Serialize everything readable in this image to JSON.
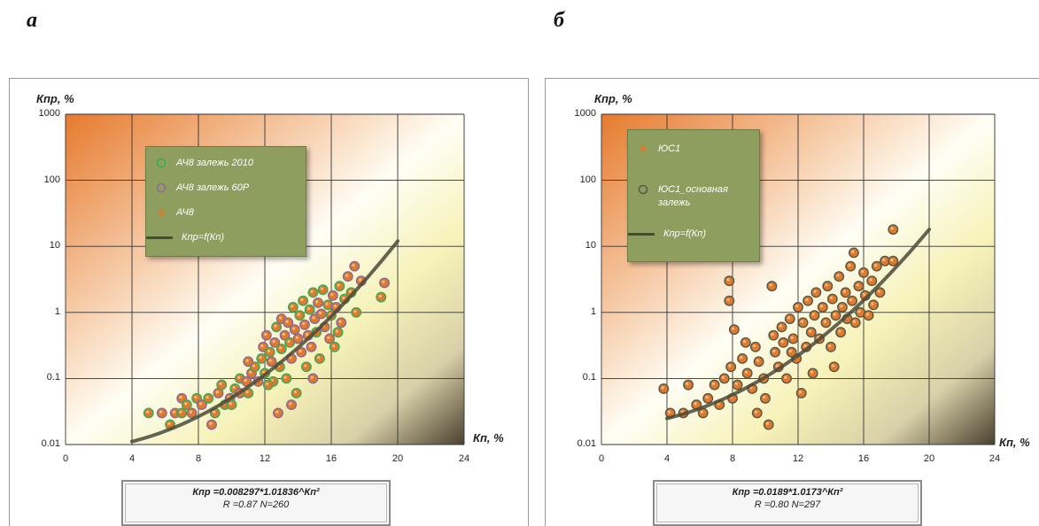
{
  "panels": [
    {
      "letter": "а",
      "ylabel": "Кпр, %",
      "xlabel": "Кп, %",
      "equation": "Кпр =0.008297*1.01836^Кп²",
      "stats": "R =0.87 N=260",
      "legend": [
        {
          "label": "АЧ8 залежь 2010",
          "marker": "ring",
          "color": "#3aaa5a"
        },
        {
          "label": "АЧ8 залежь 60Р",
          "marker": "ring",
          "color": "#8a6a9a"
        },
        {
          "label": "АЧ8",
          "marker": "dot",
          "color": "#e07a2a"
        },
        {
          "label": "Кпр=f(Кп)",
          "marker": "line",
          "color": "#4a4a3a"
        }
      ]
    },
    {
      "letter": "б",
      "ylabel": "Кпр, %",
      "xlabel": "Кп, %",
      "equation": "Кпр =0.0189*1.0173^Кп²",
      "stats": "R =0.80 N=297",
      "legend": [
        {
          "label": "ЮС1",
          "marker": "dot",
          "color": "#e07a2a"
        },
        {
          "label": "ЮС1_основная залежь",
          "marker": "ring",
          "color": "#5a5a4a"
        },
        {
          "label": "Кпр=f(Кп)",
          "marker": "line",
          "color": "#4a4a3a"
        }
      ]
    }
  ],
  "chart_data": [
    {
      "type": "scatter",
      "xlim": [
        0,
        24
      ],
      "ylim": [
        0.01,
        1000
      ],
      "yscale": "log",
      "xticks": [
        "0",
        "4",
        "8",
        "12",
        "16",
        "20",
        "24"
      ],
      "yticks": [
        "0.01",
        "0.1",
        "1",
        "10",
        "100",
        "1000"
      ],
      "grid": true,
      "legend_position": "top-center",
      "fit": {
        "a": 0.008297,
        "b": 1.01836,
        "x_range": [
          4,
          20
        ]
      },
      "points": [
        [
          5.0,
          0.03
        ],
        [
          5.8,
          0.03
        ],
        [
          6.3,
          0.02
        ],
        [
          6.6,
          0.03
        ],
        [
          7.0,
          0.03
        ],
        [
          7.0,
          0.05
        ],
        [
          7.3,
          0.04
        ],
        [
          7.6,
          0.03
        ],
        [
          7.9,
          0.05
        ],
        [
          8.2,
          0.04
        ],
        [
          8.6,
          0.05
        ],
        [
          8.8,
          0.02
        ],
        [
          9.0,
          0.03
        ],
        [
          9.2,
          0.06
        ],
        [
          9.6,
          0.04
        ],
        [
          9.9,
          0.05
        ],
        [
          10.2,
          0.07
        ],
        [
          10.5,
          0.06
        ],
        [
          10.5,
          0.1
        ],
        [
          10.9,
          0.09
        ],
        [
          11.0,
          0.06
        ],
        [
          11.2,
          0.12
        ],
        [
          11.4,
          0.15
        ],
        [
          11.6,
          0.09
        ],
        [
          11.8,
          0.2
        ],
        [
          11.9,
          0.3
        ],
        [
          12.0,
          0.12
        ],
        [
          12.1,
          0.45
        ],
        [
          12.3,
          0.25
        ],
        [
          12.4,
          0.18
        ],
        [
          12.5,
          0.09
        ],
        [
          12.6,
          0.35
        ],
        [
          12.7,
          0.6
        ],
        [
          12.8,
          0.03
        ],
        [
          12.9,
          0.15
        ],
        [
          13.0,
          0.8
        ],
        [
          13.0,
          0.28
        ],
        [
          13.2,
          0.45
        ],
        [
          13.3,
          0.1
        ],
        [
          13.4,
          0.7
        ],
        [
          13.5,
          0.35
        ],
        [
          13.6,
          0.2
        ],
        [
          13.7,
          1.2
        ],
        [
          13.8,
          0.55
        ],
        [
          13.9,
          0.06
        ],
        [
          14.0,
          0.4
        ],
        [
          14.1,
          0.9
        ],
        [
          14.2,
          0.25
        ],
        [
          14.3,
          1.5
        ],
        [
          14.4,
          0.65
        ],
        [
          14.5,
          0.15
        ],
        [
          14.6,
          0.45
        ],
        [
          14.7,
          1.1
        ],
        [
          14.8,
          0.3
        ],
        [
          14.9,
          2.0
        ],
        [
          15.0,
          0.8
        ],
        [
          15.1,
          0.5
        ],
        [
          15.2,
          1.4
        ],
        [
          15.3,
          0.2
        ],
        [
          15.4,
          0.95
        ],
        [
          15.5,
          2.2
        ],
        [
          15.6,
          0.6
        ],
        [
          15.8,
          1.3
        ],
        [
          15.9,
          0.4
        ],
        [
          16.0,
          0.9
        ],
        [
          16.1,
          1.8
        ],
        [
          16.2,
          0.3
        ],
        [
          16.3,
          1.2
        ],
        [
          16.5,
          2.5
        ],
        [
          16.6,
          0.7
        ],
        [
          16.8,
          1.6
        ],
        [
          17.0,
          3.5
        ],
        [
          17.2,
          2.0
        ],
        [
          17.4,
          5.0
        ],
        [
          17.5,
          1.0
        ],
        [
          17.8,
          3.0
        ],
        [
          19.0,
          1.7
        ],
        [
          19.2,
          2.8
        ],
        [
          12.2,
          0.08
        ],
        [
          11.0,
          0.18
        ],
        [
          10.0,
          0.04
        ],
        [
          13.6,
          0.04
        ],
        [
          9.4,
          0.08
        ],
        [
          14.9,
          0.1
        ],
        [
          16.4,
          0.5
        ]
      ]
    },
    {
      "type": "scatter",
      "xlim": [
        0,
        24
      ],
      "ylim": [
        0.01,
        1000
      ],
      "yscale": "log",
      "xticks": [
        "0",
        "4",
        "8",
        "12",
        "16",
        "20",
        "24"
      ],
      "yticks": [
        "0.01",
        "0.1",
        "1",
        "10",
        "100",
        "1000"
      ],
      "grid": true,
      "legend_position": "top-left",
      "fit": {
        "a": 0.0189,
        "b": 1.0173,
        "x_range": [
          4,
          20
        ]
      },
      "points": [
        [
          3.8,
          0.07
        ],
        [
          4.2,
          0.03
        ],
        [
          5.0,
          0.03
        ],
        [
          5.3,
          0.08
        ],
        [
          5.8,
          0.04
        ],
        [
          6.2,
          0.03
        ],
        [
          6.5,
          0.05
        ],
        [
          6.9,
          0.08
        ],
        [
          7.2,
          0.04
        ],
        [
          7.5,
          0.1
        ],
        [
          7.8,
          1.5
        ],
        [
          7.8,
          3.0
        ],
        [
          7.9,
          0.15
        ],
        [
          8.0,
          0.05
        ],
        [
          8.1,
          0.55
        ],
        [
          8.3,
          0.08
        ],
        [
          8.6,
          0.2
        ],
        [
          8.9,
          0.12
        ],
        [
          9.2,
          0.07
        ],
        [
          9.4,
          0.3
        ],
        [
          9.5,
          0.03
        ],
        [
          9.6,
          0.18
        ],
        [
          9.9,
          0.1
        ],
        [
          10.2,
          0.02
        ],
        [
          10.4,
          2.5
        ],
        [
          10.5,
          0.45
        ],
        [
          10.6,
          0.25
        ],
        [
          10.8,
          0.15
        ],
        [
          11.0,
          0.6
        ],
        [
          11.1,
          0.35
        ],
        [
          11.3,
          0.1
        ],
        [
          11.5,
          0.8
        ],
        [
          11.7,
          0.4
        ],
        [
          11.9,
          0.2
        ],
        [
          12.0,
          1.2
        ],
        [
          12.2,
          0.06
        ],
        [
          12.3,
          0.7
        ],
        [
          12.5,
          0.3
        ],
        [
          12.6,
          1.5
        ],
        [
          12.8,
          0.5
        ],
        [
          13.0,
          0.9
        ],
        [
          13.1,
          2.0
        ],
        [
          13.3,
          0.4
        ],
        [
          13.5,
          1.2
        ],
        [
          13.7,
          0.7
        ],
        [
          13.8,
          2.5
        ],
        [
          14.0,
          0.3
        ],
        [
          14.1,
          1.6
        ],
        [
          14.3,
          0.9
        ],
        [
          14.5,
          3.5
        ],
        [
          14.6,
          0.5
        ],
        [
          14.7,
          1.2
        ],
        [
          14.9,
          2.0
        ],
        [
          15.0,
          0.8
        ],
        [
          15.2,
          5.0
        ],
        [
          15.3,
          1.5
        ],
        [
          15.4,
          8.0
        ],
        [
          15.5,
          0.7
        ],
        [
          15.7,
          2.5
        ],
        [
          15.8,
          1.0
        ],
        [
          16.0,
          4.0
        ],
        [
          16.1,
          1.8
        ],
        [
          16.3,
          0.9
        ],
        [
          16.5,
          3.0
        ],
        [
          16.6,
          1.3
        ],
        [
          16.8,
          5.0
        ],
        [
          17.0,
          2.0
        ],
        [
          17.3,
          6.0
        ],
        [
          17.8,
          6.0
        ],
        [
          17.8,
          18.0
        ],
        [
          14.2,
          0.15
        ],
        [
          10.0,
          0.05
        ],
        [
          12.9,
          0.12
        ],
        [
          8.8,
          0.35
        ],
        [
          11.6,
          0.25
        ]
      ]
    }
  ]
}
